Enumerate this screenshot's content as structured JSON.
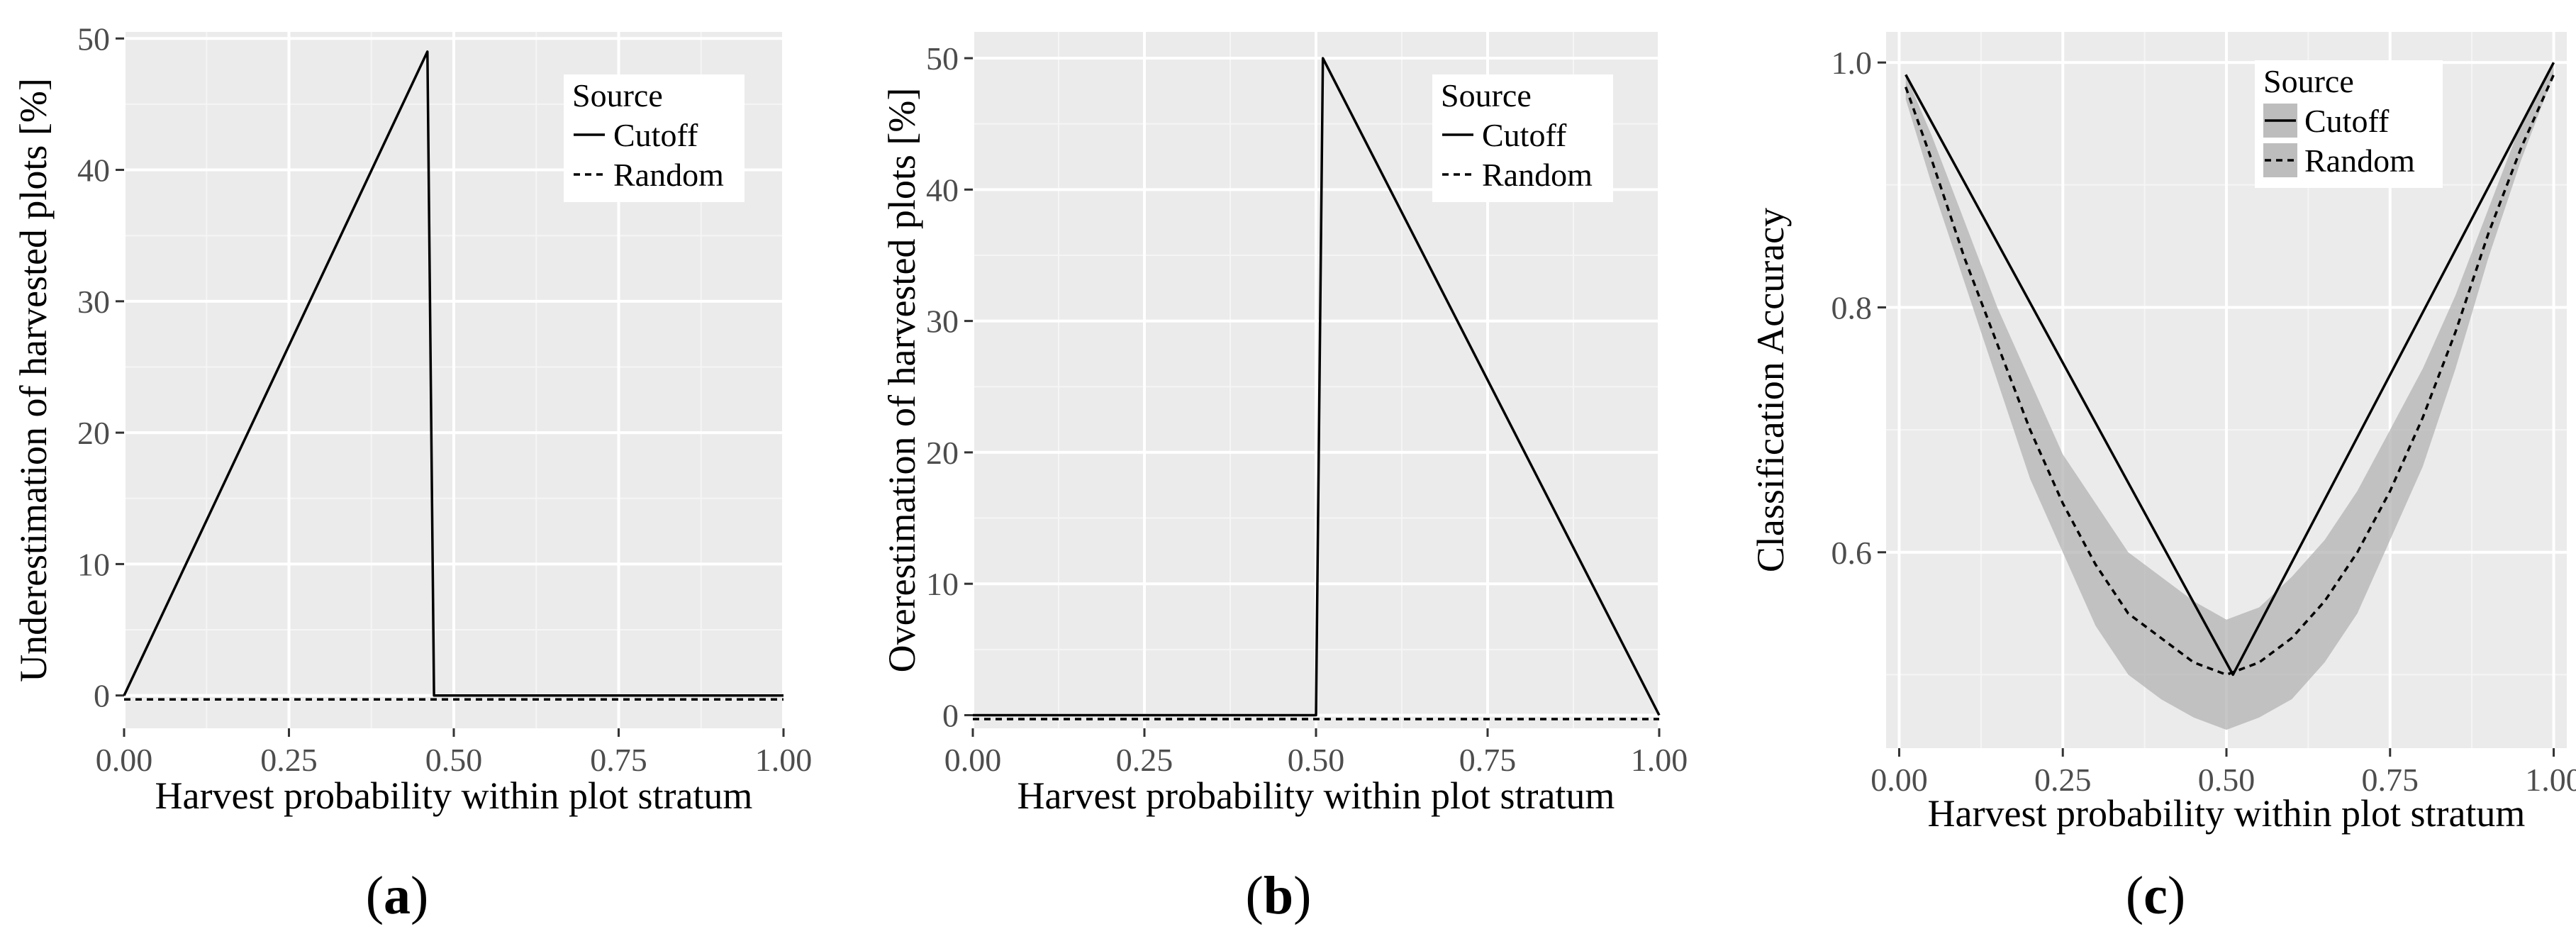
{
  "chart_data": [
    {
      "type": "line",
      "panel_label": "a",
      "xlabel": "Harvest probability within plot stratum",
      "ylabel": "Underestimation of harvested plots [%]",
      "xlim": [
        0.0,
        1.0
      ],
      "ylim": [
        -2.5,
        50.5
      ],
      "xticks": [
        0.0,
        0.25,
        0.5,
        0.75,
        1.0
      ],
      "xtick_labels": [
        "0.00",
        "0.25",
        "0.50",
        "0.75",
        "1.00"
      ],
      "yticks": [
        0,
        10,
        20,
        30,
        40,
        50
      ],
      "ytick_labels": [
        "0",
        "10",
        "20",
        "30",
        "40",
        "50"
      ],
      "legend": {
        "title": "Source",
        "position": "top-right",
        "entries": [
          "Cutoff",
          "Random"
        ]
      },
      "series": [
        {
          "name": "Cutoff",
          "style": "solid",
          "x": [
            0.0,
            0.46,
            0.47,
            1.0
          ],
          "y": [
            0,
            49,
            0,
            0
          ]
        },
        {
          "name": "Random",
          "style": "dashed",
          "x": [
            0.0,
            1.0
          ],
          "y": [
            -0.3,
            -0.3
          ]
        }
      ]
    },
    {
      "type": "line",
      "panel_label": "b",
      "xlabel": "Harvest probability within plot stratum",
      "ylabel": "Overestimation of harvested plots [%]",
      "xlim": [
        0.0,
        1.0
      ],
      "ylim": [
        -1.0,
        52.0
      ],
      "xticks": [
        0.0,
        0.25,
        0.5,
        0.75,
        1.0
      ],
      "xtick_labels": [
        "0.00",
        "0.25",
        "0.50",
        "0.75",
        "1.00"
      ],
      "yticks": [
        0,
        10,
        20,
        30,
        40,
        50
      ],
      "ytick_labels": [
        "0",
        "10",
        "20",
        "30",
        "40",
        "50"
      ],
      "legend": {
        "title": "Source",
        "position": "top-right",
        "entries": [
          "Cutoff",
          "Random"
        ]
      },
      "series": [
        {
          "name": "Cutoff",
          "style": "solid",
          "x": [
            0.0,
            0.5,
            0.51,
            1.0
          ],
          "y": [
            0,
            0,
            50,
            0
          ]
        },
        {
          "name": "Random",
          "style": "dashed",
          "x": [
            0.0,
            1.0
          ],
          "y": [
            -0.3,
            -0.3
          ]
        }
      ]
    },
    {
      "type": "line",
      "panel_label": "c",
      "xlabel": "Harvest probability within plot stratum",
      "ylabel": "Classification Accuracy",
      "xlim": [
        -0.02,
        1.02
      ],
      "ylim": [
        0.44,
        1.025
      ],
      "xticks": [
        0.0,
        0.25,
        0.5,
        0.75,
        1.0
      ],
      "xtick_labels": [
        "0.00",
        "0.25",
        "0.50",
        "0.75",
        "1.00"
      ],
      "yticks": [
        0.6,
        0.8,
        1.0
      ],
      "ytick_labels": [
        "0.6",
        "0.8",
        "1.0"
      ],
      "legend": {
        "title": "Source",
        "position": "top-right",
        "entries": [
          "Cutoff",
          "Random"
        ]
      },
      "series": [
        {
          "name": "Cutoff",
          "style": "solid",
          "x": [
            0.01,
            0.51,
            1.0
          ],
          "y": [
            0.99,
            0.5,
            1.0
          ]
        },
        {
          "name": "Random",
          "style": "dashed",
          "x": [
            0.01,
            0.05,
            0.1,
            0.15,
            0.2,
            0.25,
            0.3,
            0.35,
            0.4,
            0.45,
            0.5,
            0.55,
            0.6,
            0.65,
            0.7,
            0.75,
            0.8,
            0.85,
            0.9,
            0.95,
            1.0
          ],
          "y": [
            0.98,
            0.92,
            0.84,
            0.77,
            0.7,
            0.64,
            0.59,
            0.55,
            0.53,
            0.51,
            0.5,
            0.51,
            0.53,
            0.56,
            0.6,
            0.65,
            0.71,
            0.78,
            0.86,
            0.93,
            0.99
          ]
        },
        {
          "name": "Random interval",
          "style": "ribbon",
          "x": [
            0.01,
            0.05,
            0.1,
            0.15,
            0.2,
            0.25,
            0.3,
            0.35,
            0.4,
            0.45,
            0.5,
            0.55,
            0.6,
            0.65,
            0.7,
            0.75,
            0.8,
            0.85,
            0.9,
            0.95,
            1.0
          ],
          "lower": [
            0.97,
            0.9,
            0.82,
            0.74,
            0.66,
            0.6,
            0.54,
            0.5,
            0.48,
            0.465,
            0.455,
            0.465,
            0.48,
            0.51,
            0.55,
            0.61,
            0.67,
            0.75,
            0.84,
            0.92,
            0.99
          ],
          "upper": [
            0.99,
            0.94,
            0.87,
            0.8,
            0.74,
            0.68,
            0.64,
            0.6,
            0.58,
            0.56,
            0.545,
            0.555,
            0.58,
            0.61,
            0.65,
            0.7,
            0.75,
            0.81,
            0.88,
            0.95,
            1.0
          ]
        }
      ]
    }
  ]
}
